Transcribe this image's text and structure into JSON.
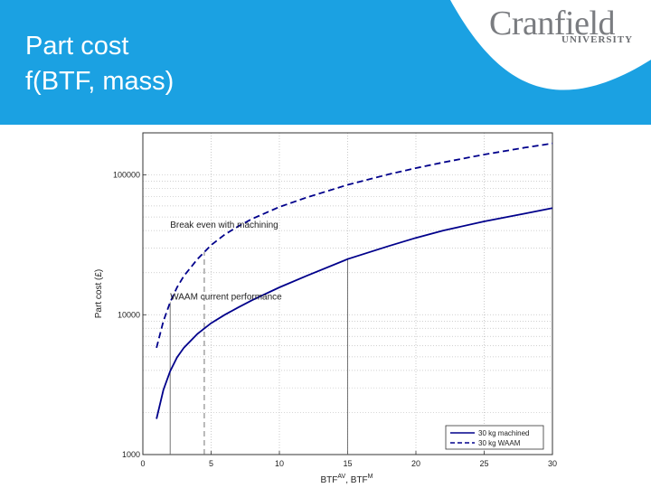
{
  "slide": {
    "title_line1": "Part cost",
    "title_line2": "f(BTF, mass)",
    "logo_word": "Cranfield",
    "logo_sub": "UNIVERSITY",
    "header_color": "#1ba1e2"
  },
  "chart_data": {
    "type": "line",
    "title": "",
    "xlabel": "BTF",
    "xlabel_sup1": "AV",
    "xlabel_sep": ", BTF",
    "xlabel_sup2": "M",
    "ylabel": "Part cost (£)",
    "x_ticks": [
      0,
      5,
      10,
      15,
      20,
      25,
      30
    ],
    "y_ticks": [
      1000,
      10000,
      100000
    ],
    "y_tick_labels": [
      "1000",
      "10000",
      "100000"
    ],
    "xlim": [
      0,
      30
    ],
    "ylim": [
      1000,
      200000
    ],
    "yscale": "log",
    "grid": true,
    "legend_position": "bottom-right",
    "series": [
      {
        "name": "30 kg machined",
        "style": "solid",
        "color": "#00008b",
        "x": [
          1,
          1.5,
          2,
          2.5,
          3,
          4,
          5,
          6,
          7,
          8,
          10,
          12,
          15,
          18,
          20,
          22,
          25,
          28,
          30
        ],
        "y": [
          1800,
          2900,
          3950,
          4950,
          5800,
          7300,
          8700,
          10000,
          11300,
          12700,
          15700,
          19000,
          25000,
          31000,
          35500,
          40000,
          46500,
          53000,
          58000
        ]
      },
      {
        "name": "30 kg WAAM",
        "style": "dashed",
        "color": "#00008b",
        "x": [
          1,
          1.5,
          2,
          2.5,
          3,
          4,
          5,
          6,
          7,
          8,
          10,
          12,
          15,
          18,
          20,
          22,
          25,
          28,
          30
        ],
        "y": [
          5800,
          9000,
          12300,
          15700,
          18900,
          25000,
          31500,
          37500,
          43000,
          48500,
          59000,
          69000,
          85000,
          101000,
          112000,
          123000,
          140000,
          157000,
          168000
        ]
      }
    ],
    "vlines": [
      {
        "x": 2,
        "style": "solid",
        "y_top": 12300
      },
      {
        "x": 4.5,
        "style": "dashed",
        "y_top": 28000
      },
      {
        "x": 15,
        "style": "solid",
        "y_top": 25000
      }
    ],
    "annotations": [
      {
        "text": "Break even with machining",
        "x": 2,
        "y": 42000
      },
      {
        "text": "WAAM current performance",
        "x": 2,
        "y": 12800
      }
    ]
  }
}
